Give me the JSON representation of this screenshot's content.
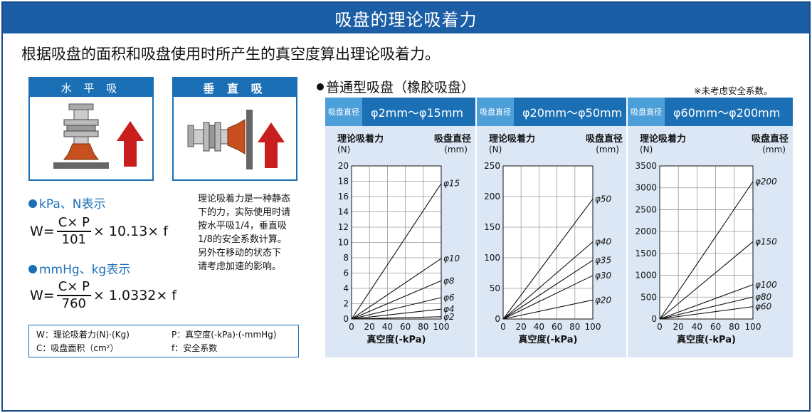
{
  "header": {
    "title": "吸盘的理论吸着力"
  },
  "subtitle": "根据吸盘的面积和吸盘使用时所产生的真空度算出理论吸着力。",
  "modes": {
    "horizontal": "水 平 吸",
    "vertical": "垂 直 吸"
  },
  "formula_kpa": {
    "heading": "kPa、N表示",
    "lhs": "W=",
    "numerator": "C× P",
    "denominator": "101",
    "rhs": "× 10.13× f"
  },
  "formula_mmhg": {
    "heading": "mmHg、kg表示",
    "lhs": "W=",
    "numerator": "C× P",
    "denominator": "760",
    "rhs": "× 1.0332× f"
  },
  "note_lines": [
    "理论吸着力是一种静态",
    "下的力，实际使用时请",
    "按水平吸1/4，垂直吸",
    "1/8的安全系数计算。",
    "另外在移动的状态下",
    "请考虑加速的影响。"
  ],
  "legend": {
    "w": "W：理论吸着力(N)·(Kg)",
    "p": "P：真空度(-kPa)·(-mmHg)",
    "c": "C：吸盘面积（cm²）",
    "f": "f：安全系数"
  },
  "section_title": "普通型吸盘（橡胶吸盘）",
  "safety_note": "※未考虑安全系数。",
  "panels": [
    {
      "label": "吸盘直径",
      "range": "φ2mm～φ15mm"
    },
    {
      "label": "吸盘直径",
      "range": "φ20mm～φ50mm"
    },
    {
      "label": "吸盘直径",
      "range": "φ60mm～φ200mm"
    }
  ],
  "axis_text": {
    "y_title": "理论吸着力",
    "y_unit": "(N)",
    "r_title": "吸盘直径",
    "r_unit": "(mm)",
    "x_title": "真空度(-kPa)"
  },
  "chart_data": [
    {
      "type": "line",
      "x": [
        0,
        100
      ],
      "xlim": [
        0,
        100
      ],
      "xticks": [
        0,
        20,
        40,
        60,
        80,
        100
      ],
      "ylim": [
        0,
        20
      ],
      "yticks": [
        0,
        2,
        4,
        6,
        8,
        10,
        12,
        14,
        16,
        18,
        20
      ],
      "grid": true,
      "series": [
        {
          "name": "φ15",
          "values": [
            0,
            17.7
          ]
        },
        {
          "name": "φ10",
          "values": [
            0,
            7.9
          ]
        },
        {
          "name": "φ8",
          "values": [
            0,
            5.0
          ]
        },
        {
          "name": "φ6",
          "values": [
            0,
            2.8
          ]
        },
        {
          "name": "φ4",
          "values": [
            0,
            1.3
          ]
        },
        {
          "name": "φ2",
          "values": [
            0,
            0.3
          ]
        }
      ]
    },
    {
      "type": "line",
      "x": [
        0,
        100
      ],
      "xlim": [
        0,
        100
      ],
      "xticks": [
        0,
        20,
        40,
        60,
        80,
        100
      ],
      "ylim": [
        0,
        250
      ],
      "yticks": [
        0,
        50,
        100,
        150,
        200,
        250
      ],
      "grid": true,
      "series": [
        {
          "name": "φ50",
          "values": [
            0,
            196
          ]
        },
        {
          "name": "φ40",
          "values": [
            0,
            126
          ]
        },
        {
          "name": "φ35",
          "values": [
            0,
            96
          ]
        },
        {
          "name": "φ30",
          "values": [
            0,
            71
          ]
        },
        {
          "name": "φ20",
          "values": [
            0,
            31
          ]
        }
      ]
    },
    {
      "type": "line",
      "x": [
        0,
        100
      ],
      "xlim": [
        0,
        100
      ],
      "xticks": [
        0,
        20,
        40,
        60,
        80,
        100
      ],
      "ylim": [
        0,
        3500
      ],
      "yticks": [
        0,
        500,
        1000,
        1500,
        2000,
        2500,
        3000,
        3500
      ],
      "grid": true,
      "series": [
        {
          "name": "φ200",
          "values": [
            0,
            3140
          ]
        },
        {
          "name": "φ150",
          "values": [
            0,
            1767
          ]
        },
        {
          "name": "φ100",
          "values": [
            0,
            785
          ]
        },
        {
          "name": "φ80",
          "values": [
            0,
            503
          ]
        },
        {
          "name": "φ60",
          "values": [
            0,
            283
          ]
        }
      ]
    }
  ],
  "colors": {
    "header": "#1b5ea6",
    "accent": "#1b6fb5",
    "panel_bg": "#dce7f5",
    "arrow": "#c81e1e",
    "cup": "#c8501e"
  },
  "icons": [
    "suction-cup-horizontal-icon",
    "suction-cup-vertical-icon",
    "arrow-up-icon",
    "arrow-right-icon"
  ]
}
